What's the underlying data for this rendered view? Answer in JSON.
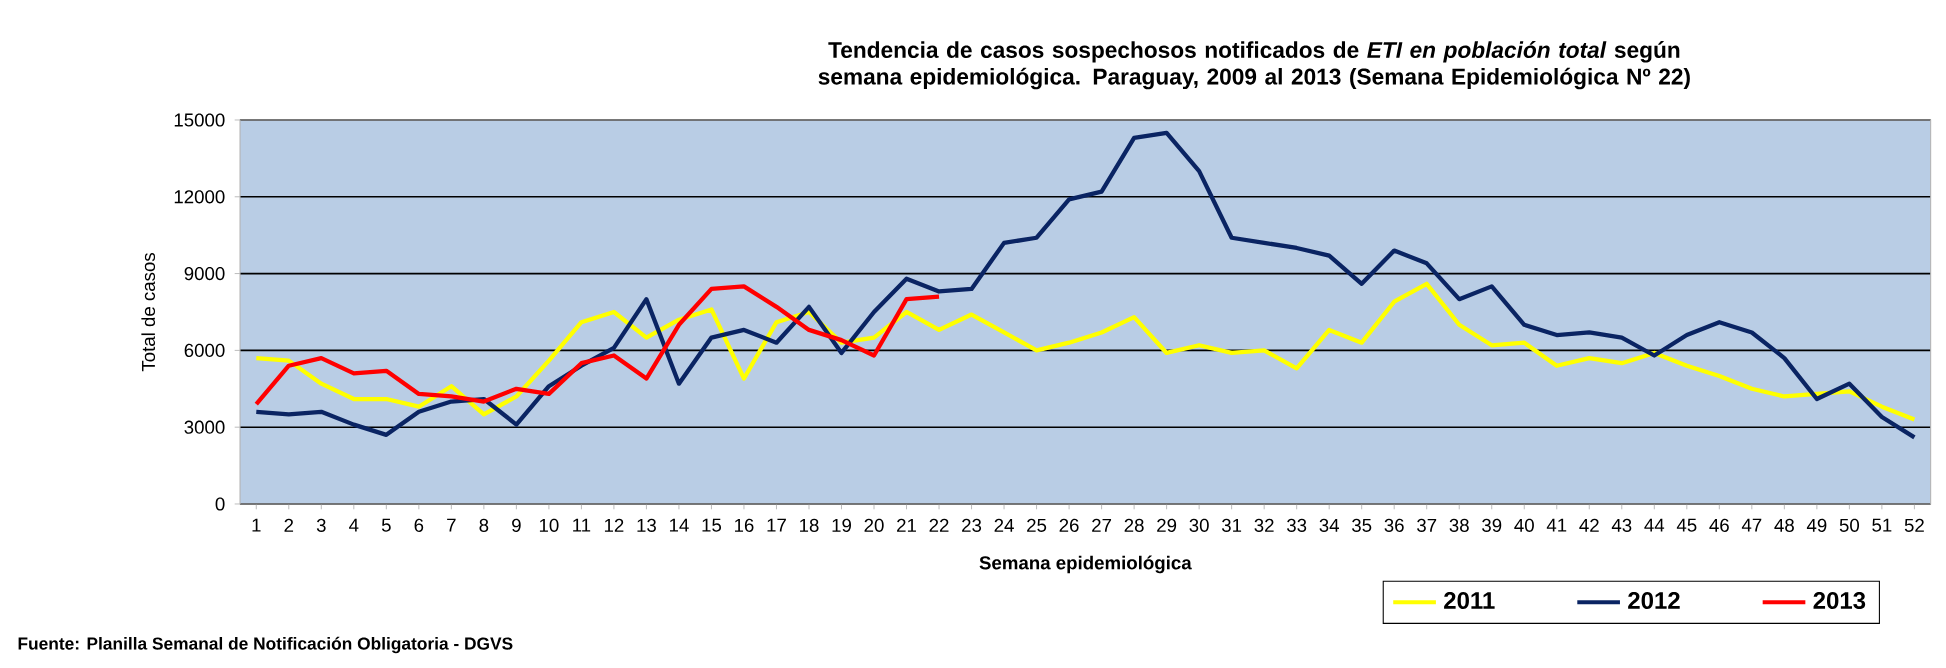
{
  "chart_data": {
    "type": "line",
    "title": "Tendencia de casos sospechosos notificados de *ETI en población total* según semana epidemiológica. Paraguay, 2009 al 2013 (Semana Epidemiológica Nº 22)",
    "xlabel": "Semana epidemiológica",
    "ylabel": "Total de casos",
    "categories": [
      "1",
      "2",
      "3",
      "4",
      "5",
      "6",
      "7",
      "8",
      "9",
      "10",
      "11",
      "12",
      "13",
      "14",
      "15",
      "16",
      "17",
      "18",
      "19",
      "20",
      "21",
      "22",
      "23",
      "24",
      "25",
      "26",
      "27",
      "28",
      "29",
      "30",
      "31",
      "32",
      "33",
      "34",
      "35",
      "36",
      "37",
      "38",
      "39",
      "40",
      "41",
      "42",
      "43",
      "44",
      "45",
      "46",
      "47",
      "48",
      "49",
      "50",
      "51",
      "52"
    ],
    "series": [
      {
        "name": "2011",
        "color": "#ffff00",
        "values": [
          5700,
          5600,
          4700,
          4100,
          4100,
          3800,
          4600,
          3500,
          4200,
          5600,
          7100,
          7500,
          6500,
          7200,
          7600,
          4900,
          7100,
          7500,
          6300,
          6500,
          7500,
          6800,
          7400,
          6700,
          6000,
          6300,
          6700,
          7300,
          5900,
          6200,
          5900,
          6000,
          5300,
          6800,
          6300,
          7900,
          8600,
          7000,
          6200,
          6300,
          5400,
          5700,
          5500,
          5900,
          5400,
          5000,
          4500,
          4200,
          4300,
          4400,
          3800,
          3300
        ]
      },
      {
        "name": "2012",
        "color": "#0a2463",
        "values": [
          3600,
          3500,
          3600,
          3100,
          2700,
          3600,
          4000,
          4100,
          3100,
          4600,
          5400,
          6100,
          8000,
          4700,
          6500,
          6800,
          6300,
          7700,
          5900,
          7500,
          8800,
          8300,
          8400,
          10200,
          10400,
          11900,
          12200,
          14300,
          14500,
          13000,
          10400,
          10200,
          10000,
          9700,
          8600,
          9900,
          9400,
          8000,
          8500,
          7000,
          6600,
          6700,
          6500,
          5800,
          6600,
          7100,
          6700,
          5700,
          4100,
          4700,
          3400,
          2600
        ]
      },
      {
        "name": "2013",
        "color": "#ff0000",
        "values": [
          3900,
          5400,
          5700,
          5100,
          5200,
          4300,
          4200,
          4000,
          4500,
          4300,
          5500,
          5800,
          4900,
          7000,
          8400,
          8500,
          7700,
          6800,
          6400,
          5800,
          8000,
          8100,
          null,
          null,
          null,
          null,
          null,
          null,
          null,
          null,
          null,
          null,
          null,
          null,
          null,
          null,
          null,
          null,
          null,
          null,
          null,
          null,
          null,
          null,
          null,
          null,
          null,
          null,
          null,
          null,
          null,
          null
        ]
      }
    ],
    "ylim": [
      0,
      15000
    ],
    "yticks": [
      0,
      3000,
      6000,
      9000,
      12000,
      15000
    ],
    "grid": "y",
    "legend": "bottom right",
    "line_style": "solid",
    "marker": "none",
    "annotations": [
      "Fuente: Planilla Semanal de Notificación Obligatoria - DGVS"
    ]
  }
}
